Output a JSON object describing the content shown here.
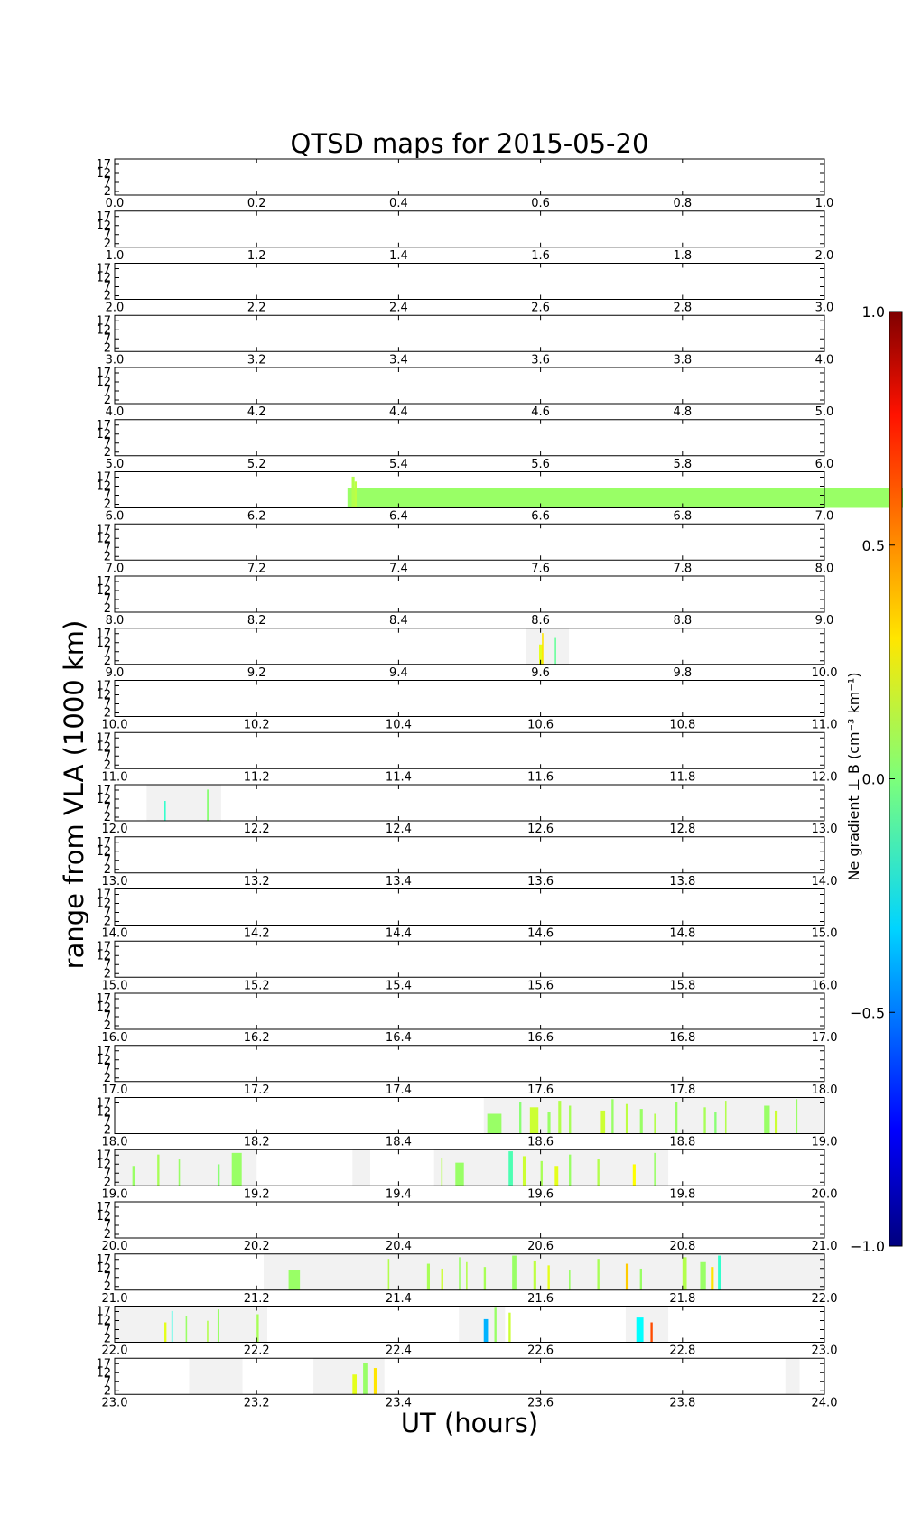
{
  "chart_data": {
    "type": "heatmap",
    "title": "QTSD maps for 2015-05-20",
    "xlabel": "UT (hours)",
    "ylabel": "range from VLA (1000 km)",
    "y_ticks": [
      "17",
      "12",
      "7",
      "2"
    ],
    "y_range": [
      0,
      20
    ],
    "colorbar": {
      "label": "Ne gradient ⊥ B (cm⁻³ km⁻¹)",
      "ticks": [
        "1.0",
        "0.5",
        "0.0",
        "−0.5",
        "−1.0"
      ],
      "range": [
        -1.0,
        1.0
      ],
      "colormap": "jet"
    },
    "colors": {
      "coverage": "#f2f2f2",
      "frame": "#000000"
    },
    "panels_hours": [
      0,
      1,
      2,
      3,
      4,
      5,
      6,
      7,
      8,
      9,
      10,
      11,
      12,
      13,
      14,
      15,
      16,
      17,
      18,
      19,
      20,
      21,
      22,
      23
    ],
    "coverage": [
      [],
      [],
      [],
      [],
      [],
      [],
      [],
      [],
      [],
      [
        [
          9.58,
          9.64
        ]
      ],
      [],
      [],
      [
        [
          12.045,
          12.15
        ]
      ],
      [],
      [],
      [],
      [],
      [],
      [
        [
          18.52,
          19.0
        ]
      ],
      [
        [
          19.0,
          19.2
        ],
        [
          19.335,
          19.36
        ],
        [
          19.45,
          19.78
        ]
      ],
      [],
      [
        [
          21.21,
          22.0
        ]
      ],
      [
        [
          22.0,
          22.215
        ],
        [
          22.485,
          22.55
        ],
        [
          22.72,
          22.78
        ]
      ],
      [
        [
          23.105,
          23.18
        ],
        [
          23.28,
          23.38
        ],
        [
          23.945,
          23.965
        ]
      ]
    ],
    "features": [
      [],
      [],
      [],
      [],
      [],
      [],
      [
        [
          6.328,
          6.002,
          0.05
        ],
        [
          6.334,
          0.004,
          0.1
        ],
        [
          6.338,
          0.003,
          0.12
        ]
      ],
      [],
      [],
      [
        [
          9.598,
          0.005,
          0.2
        ],
        [
          9.602,
          0.002,
          0.3
        ],
        [
          9.62,
          0.002,
          -0.05
        ]
      ],
      [],
      [],
      [
        [
          12.07,
          0.002,
          -0.15
        ],
        [
          12.13,
          0.003,
          0.02
        ]
      ],
      [],
      [],
      [],
      [],
      [],
      [
        [
          18.525,
          0.02,
          0.05
        ],
        [
          18.57,
          0.003,
          0.02
        ],
        [
          18.585,
          0.012,
          0.15
        ],
        [
          18.61,
          0.004,
          0.05
        ],
        [
          18.625,
          0.004,
          0.1
        ],
        [
          18.64,
          0.003,
          0.08
        ],
        [
          18.685,
          0.006,
          0.15
        ],
        [
          18.7,
          0.003,
          0.05
        ],
        [
          18.72,
          0.003,
          0.12
        ],
        [
          18.74,
          0.004,
          0.05
        ],
        [
          18.76,
          0.003,
          0.1
        ],
        [
          18.79,
          0.003,
          0.05
        ],
        [
          18.83,
          0.003,
          0.08
        ],
        [
          18.845,
          0.003,
          0.02
        ],
        [
          18.86,
          0.002,
          0.1
        ],
        [
          18.915,
          0.008,
          0.05
        ],
        [
          18.93,
          0.004,
          0.15
        ],
        [
          18.96,
          0.002,
          0.05
        ]
      ],
      [
        [
          19.025,
          0.004,
          0.05
        ],
        [
          19.06,
          0.003,
          0.08
        ],
        [
          19.09,
          0.002,
          0.05
        ],
        [
          19.145,
          0.003,
          0.02
        ],
        [
          19.165,
          0.014,
          0.05
        ],
        [
          19.46,
          0.002,
          0.1
        ],
        [
          19.48,
          0.012,
          0.05
        ],
        [
          19.555,
          0.006,
          -0.1
        ],
        [
          19.575,
          0.005,
          0.15
        ],
        [
          19.6,
          0.003,
          0.08
        ],
        [
          19.62,
          0.005,
          0.2
        ],
        [
          19.64,
          0.003,
          0.05
        ],
        [
          19.68,
          0.003,
          0.1
        ],
        [
          19.73,
          0.004,
          0.25
        ],
        [
          19.76,
          0.002,
          0.05
        ]
      ],
      [],
      [
        [
          21.245,
          0.016,
          0.05
        ],
        [
          21.385,
          0.002,
          0.1
        ],
        [
          21.44,
          0.004,
          0.08
        ],
        [
          21.46,
          0.003,
          0.15
        ],
        [
          21.485,
          0.002,
          0.05
        ],
        [
          21.495,
          0.002,
          0.1
        ],
        [
          21.52,
          0.003,
          0.08
        ],
        [
          21.56,
          0.006,
          0.05
        ],
        [
          21.59,
          0.004,
          0.12
        ],
        [
          21.61,
          0.003,
          0.2
        ],
        [
          21.64,
          0.002,
          0.05
        ],
        [
          21.68,
          0.003,
          0.08
        ],
        [
          21.72,
          0.004,
          0.35
        ],
        [
          21.74,
          0.003,
          0.05
        ],
        [
          21.8,
          0.006,
          0.1
        ],
        [
          21.825,
          0.008,
          0.05
        ],
        [
          21.84,
          0.004,
          0.3
        ],
        [
          21.85,
          0.004,
          -0.15
        ]
      ],
      [
        [
          22.07,
          0.003,
          0.2
        ],
        [
          22.08,
          0.002,
          -0.2
        ],
        [
          22.1,
          0.002,
          0.05
        ],
        [
          22.13,
          0.002,
          0.1
        ],
        [
          22.145,
          0.002,
          0.05
        ],
        [
          22.2,
          0.003,
          0.08
        ],
        [
          22.52,
          0.006,
          -0.4
        ],
        [
          22.535,
          0.003,
          0.05
        ],
        [
          22.555,
          0.003,
          0.15
        ],
        [
          22.735,
          0.01,
          -0.25
        ],
        [
          22.755,
          0.003,
          0.6
        ]
      ],
      [
        [
          23.335,
          0.006,
          0.2
        ],
        [
          23.35,
          0.006,
          0.05
        ],
        [
          23.365,
          0.004,
          0.3
        ]
      ]
    ]
  }
}
